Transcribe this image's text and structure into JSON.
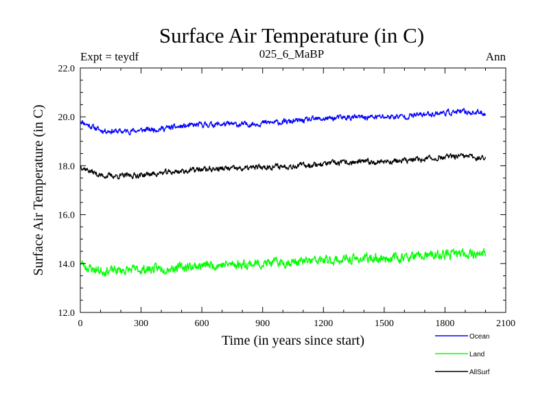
{
  "chart_data": {
    "type": "line",
    "title": "Surface Air Temperature (in C)",
    "subtitle": "025_6_MaBP",
    "experiment_label": "Expt = teydf",
    "period_label": "Ann",
    "xlabel": "Time (in years since start)",
    "ylabel": "Surface Air Temperature (in C)",
    "xlim": [
      0,
      2100
    ],
    "ylim": [
      12.0,
      22.0
    ],
    "x_ticks": [
      0,
      300,
      600,
      900,
      1200,
      1500,
      1800,
      2100
    ],
    "x_tick_labels": [
      "0",
      "300",
      "600",
      "900",
      "1200",
      "1500",
      "1800",
      "2100"
    ],
    "y_ticks": [
      12.0,
      14.0,
      16.0,
      18.0,
      20.0,
      22.0
    ],
    "y_tick_labels": [
      "12.0",
      "14.0",
      "16.0",
      "18.0",
      "20.0",
      "22.0"
    ],
    "x_minor_step": 100,
    "y_minor_step": 0.5,
    "grid": false,
    "legend_position": "bottom-right",
    "series": [
      {
        "name": "Ocean",
        "color": "#0000ff",
        "x_start": 0,
        "x_end": 2000,
        "noise": 0.09,
        "seed": 11,
        "trend_x": [
          0,
          30,
          100,
          200,
          300,
          400,
          500,
          600,
          700,
          800,
          900,
          1000,
          1100,
          1200,
          1300,
          1400,
          1500,
          1600,
          1700,
          1800,
          1900,
          2000
        ],
        "trend_y": [
          19.85,
          19.7,
          19.45,
          19.4,
          19.45,
          19.52,
          19.6,
          19.68,
          19.7,
          19.68,
          19.75,
          19.78,
          19.85,
          19.92,
          19.97,
          19.98,
          20.0,
          20.02,
          20.1,
          20.18,
          20.2,
          20.15
        ]
      },
      {
        "name": "Land",
        "color": "#00ff00",
        "x_start": 0,
        "x_end": 2000,
        "noise": 0.15,
        "seed": 23,
        "trend_x": [
          0,
          30,
          100,
          200,
          300,
          400,
          500,
          600,
          700,
          800,
          900,
          1000,
          1100,
          1200,
          1300,
          1400,
          1500,
          1600,
          1700,
          1800,
          1900,
          2000
        ],
        "trend_y": [
          14.05,
          13.85,
          13.7,
          13.72,
          13.75,
          13.8,
          13.85,
          13.92,
          13.95,
          13.98,
          14.0,
          14.05,
          14.08,
          14.12,
          14.15,
          14.2,
          14.22,
          14.25,
          14.3,
          14.35,
          14.42,
          14.4
        ]
      },
      {
        "name": "AllSurf",
        "color": "#000000",
        "x_start": 0,
        "x_end": 2000,
        "noise": 0.09,
        "seed": 37,
        "trend_x": [
          0,
          30,
          100,
          200,
          300,
          400,
          500,
          600,
          700,
          800,
          900,
          1000,
          1100,
          1200,
          1300,
          1400,
          1500,
          1600,
          1700,
          1800,
          1900,
          2000
        ],
        "trend_y": [
          18.0,
          17.85,
          17.6,
          17.58,
          17.62,
          17.7,
          17.78,
          17.85,
          17.88,
          17.88,
          17.95,
          17.98,
          18.02,
          18.08,
          18.12,
          18.15,
          18.18,
          18.2,
          18.28,
          18.35,
          18.38,
          18.3
        ]
      }
    ]
  }
}
